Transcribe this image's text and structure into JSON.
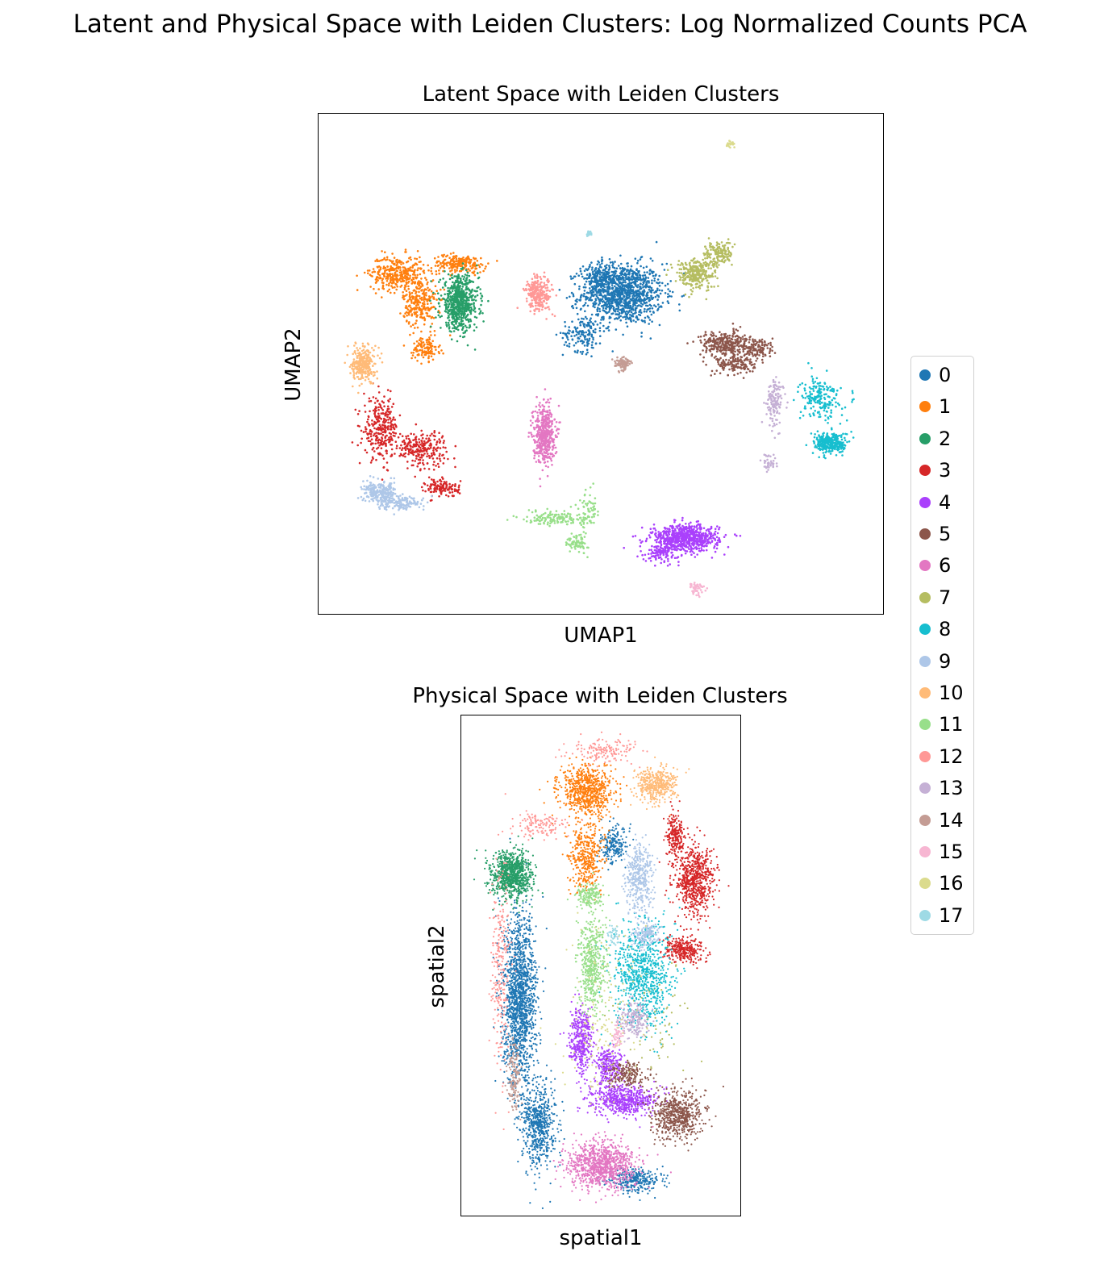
{
  "suptitle": "Latent and Physical Space with Leiden Clusters: Log Normalized Counts PCA",
  "panels": {
    "latent": {
      "title": "Latent Space with Leiden Clusters",
      "xlabel": "UMAP1",
      "ylabel": "UMAP2"
    },
    "physical": {
      "title": "Physical Space with Leiden Clusters",
      "xlabel": "spatial1",
      "ylabel": "spatial2"
    }
  },
  "legend": [
    {
      "label": "0",
      "color": "#1f77b4"
    },
    {
      "label": "1",
      "color": "#ff7f0e"
    },
    {
      "label": "2",
      "color": "#279e68"
    },
    {
      "label": "3",
      "color": "#d62728"
    },
    {
      "label": "4",
      "color": "#aa40fc"
    },
    {
      "label": "5",
      "color": "#8c564b"
    },
    {
      "label": "6",
      "color": "#e377c2"
    },
    {
      "label": "7",
      "color": "#b5bd61"
    },
    {
      "label": "8",
      "color": "#17becf"
    },
    {
      "label": "9",
      "color": "#aec7e8"
    },
    {
      "label": "10",
      "color": "#ffbb78"
    },
    {
      "label": "11",
      "color": "#98df8a"
    },
    {
      "label": "12",
      "color": "#ff9896"
    },
    {
      "label": "13",
      "color": "#c5b0d5"
    },
    {
      "label": "14",
      "color": "#c49c94"
    },
    {
      "label": "15",
      "color": "#f7b6d2"
    },
    {
      "label": "16",
      "color": "#dbdb8d"
    },
    {
      "label": "17",
      "color": "#9edae5"
    }
  ],
  "chart_data": [
    {
      "type": "scatter",
      "title": "Latent Space with Leiden Clusters",
      "xlabel": "UMAP1",
      "ylabel": "UMAP2",
      "grid": false,
      "ticks": false,
      "legend_position": "right",
      "xlim": [
        0,
        100
      ],
      "ylim": [
        0,
        100
      ],
      "series": [
        {
          "name": "0",
          "clusters": [
            {
              "x": 54,
              "y": 64,
              "sx": 6,
              "sy": 5,
              "n": 1100
            },
            {
              "x": 47,
              "y": 56,
              "sx": 3,
              "sy": 3,
              "n": 150
            },
            {
              "x": 50,
              "y": 67,
              "sx": 2.5,
              "sy": 2.5,
              "n": 180
            }
          ]
        },
        {
          "name": "1",
          "clusters": [
            {
              "x": 14,
              "y": 68,
              "sx": 4,
              "sy": 3,
              "n": 350
            },
            {
              "x": 18,
              "y": 62,
              "sx": 2.5,
              "sy": 4,
              "n": 250
            },
            {
              "x": 25,
              "y": 70,
              "sx": 4,
              "sy": 1.5,
              "n": 200
            },
            {
              "x": 19,
              "y": 53,
              "sx": 2,
              "sy": 2,
              "n": 120
            }
          ]
        },
        {
          "name": "2",
          "clusters": [
            {
              "x": 25,
              "y": 62,
              "sx": 2.8,
              "sy": 4.5,
              "n": 650
            }
          ]
        },
        {
          "name": "3",
          "clusters": [
            {
              "x": 11,
              "y": 37,
              "sx": 2.5,
              "sy": 5,
              "n": 280
            },
            {
              "x": 18,
              "y": 33,
              "sx": 4,
              "sy": 3,
              "n": 250
            },
            {
              "x": 22,
              "y": 25,
              "sx": 2.5,
              "sy": 1.5,
              "n": 120
            }
          ]
        },
        {
          "name": "4",
          "clusters": [
            {
              "x": 65,
              "y": 15,
              "sx": 5,
              "sy": 2.2,
              "n": 700
            },
            {
              "x": 61,
              "y": 12,
              "sx": 2.5,
              "sy": 1.5,
              "n": 100
            }
          ]
        },
        {
          "name": "5",
          "clusters": [
            {
              "x": 72,
              "y": 54,
              "sx": 3.5,
              "sy": 2,
              "n": 280
            },
            {
              "x": 74,
              "y": 50,
              "sx": 3,
              "sy": 2,
              "n": 160
            },
            {
              "x": 78,
              "y": 53,
              "sx": 2.5,
              "sy": 2,
              "n": 120
            }
          ]
        },
        {
          "name": "6",
          "clusters": [
            {
              "x": 40,
              "y": 36,
              "sx": 1.6,
              "sy": 5,
              "n": 420
            }
          ]
        },
        {
          "name": "7",
          "clusters": [
            {
              "x": 67,
              "y": 68,
              "sx": 3,
              "sy": 2.5,
              "n": 300
            },
            {
              "x": 71,
              "y": 72,
              "sx": 2,
              "sy": 2,
              "n": 150
            }
          ]
        },
        {
          "name": "8",
          "clusters": [
            {
              "x": 91,
              "y": 34,
              "sx": 2.5,
              "sy": 1.8,
              "n": 300
            },
            {
              "x": 89,
              "y": 43,
              "sx": 3,
              "sy": 3.5,
              "n": 200
            }
          ]
        },
        {
          "name": "9",
          "clusters": [
            {
              "x": 11,
              "y": 24,
              "sx": 2.5,
              "sy": 1.8,
              "n": 250
            },
            {
              "x": 15,
              "y": 22,
              "sx": 3,
              "sy": 1.2,
              "n": 120
            }
          ]
        },
        {
          "name": "10",
          "clusters": [
            {
              "x": 8,
              "y": 50,
              "sx": 1.7,
              "sy": 3,
              "n": 280
            }
          ]
        },
        {
          "name": "11",
          "clusters": [
            {
              "x": 42,
              "y": 19,
              "sx": 5,
              "sy": 1.2,
              "n": 150
            },
            {
              "x": 46,
              "y": 14,
              "sx": 1.5,
              "sy": 1.5,
              "n": 80
            },
            {
              "x": 48,
              "y": 21,
              "sx": 1.5,
              "sy": 3,
              "n": 60
            }
          ]
        },
        {
          "name": "12",
          "clusters": [
            {
              "x": 39,
              "y": 64,
              "sx": 2,
              "sy": 3,
              "n": 260
            }
          ]
        },
        {
          "name": "13",
          "clusters": [
            {
              "x": 81,
              "y": 42,
              "sx": 1.2,
              "sy": 4,
              "n": 130
            },
            {
              "x": 80,
              "y": 30,
              "sx": 1.2,
              "sy": 1.5,
              "n": 40
            }
          ]
        },
        {
          "name": "14",
          "clusters": [
            {
              "x": 54,
              "y": 50,
              "sx": 1.2,
              "sy": 1.2,
              "n": 90
            }
          ]
        },
        {
          "name": "15",
          "clusters": [
            {
              "x": 67,
              "y": 5,
              "sx": 1.2,
              "sy": 1,
              "n": 50
            }
          ]
        },
        {
          "name": "16",
          "clusters": [
            {
              "x": 73,
              "y": 94,
              "sx": 0.5,
              "sy": 0.7,
              "n": 20
            }
          ]
        },
        {
          "name": "17",
          "clusters": [
            {
              "x": 48,
              "y": 76,
              "sx": 0.4,
              "sy": 0.5,
              "n": 15
            }
          ]
        }
      ]
    },
    {
      "type": "scatter",
      "title": "Physical Space with Leiden Clusters",
      "xlabel": "spatial1",
      "ylabel": "spatial2",
      "grid": false,
      "ticks": false,
      "xlim": [
        0,
        100
      ],
      "ylim": [
        0,
        100
      ],
      "series": [
        {
          "name": "0",
          "clusters": [
            {
              "x": 21,
              "y": 43,
              "sx": 5,
              "sy": 14,
              "n": 1500
            },
            {
              "x": 28,
              "y": 18,
              "sx": 5,
              "sy": 7,
              "n": 600
            },
            {
              "x": 62,
              "y": 7,
              "sx": 8,
              "sy": 2,
              "n": 300
            },
            {
              "x": 55,
              "y": 74,
              "sx": 4,
              "sy": 3,
              "n": 200
            }
          ]
        },
        {
          "name": "1",
          "clusters": [
            {
              "x": 45,
              "y": 85,
              "sx": 8,
              "sy": 4,
              "n": 700
            },
            {
              "x": 45,
              "y": 72,
              "sx": 5,
              "sy": 6,
              "n": 400
            }
          ]
        },
        {
          "name": "2",
          "clusters": [
            {
              "x": 18,
              "y": 68,
              "sx": 6,
              "sy": 4,
              "n": 900
            }
          ]
        },
        {
          "name": "3",
          "clusters": [
            {
              "x": 84,
              "y": 67,
              "sx": 6,
              "sy": 6,
              "n": 700
            },
            {
              "x": 80,
              "y": 53,
              "sx": 6,
              "sy": 2,
              "n": 300
            },
            {
              "x": 77,
              "y": 76,
              "sx": 2.5,
              "sy": 4,
              "n": 200
            }
          ]
        },
        {
          "name": "4",
          "clusters": [
            {
              "x": 43,
              "y": 35,
              "sx": 3.5,
              "sy": 5,
              "n": 400
            },
            {
              "x": 58,
              "y": 23,
              "sx": 10,
              "sy": 2.5,
              "n": 600
            },
            {
              "x": 53,
              "y": 30,
              "sx": 4,
              "sy": 3,
              "n": 250
            }
          ]
        },
        {
          "name": "5",
          "clusters": [
            {
              "x": 78,
              "y": 20,
              "sx": 8,
              "sy": 4,
              "n": 600
            },
            {
              "x": 60,
              "y": 28,
              "sx": 6,
              "sy": 2,
              "n": 200
            }
          ]
        },
        {
          "name": "6",
          "clusters": [
            {
              "x": 50,
              "y": 10,
              "sx": 10,
              "sy": 4,
              "n": 1000
            }
          ]
        },
        {
          "name": "7",
          "clusters": [
            {
              "x": 70,
              "y": 40,
              "sx": 10,
              "sy": 10,
              "n": 70
            }
          ]
        },
        {
          "name": "8",
          "clusters": [
            {
              "x": 65,
              "y": 48,
              "sx": 9,
              "sy": 9,
              "n": 800
            }
          ]
        },
        {
          "name": "9",
          "clusters": [
            {
              "x": 64,
              "y": 67,
              "sx": 4,
              "sy": 6,
              "n": 400
            },
            {
              "x": 66,
              "y": 56,
              "sx": 4,
              "sy": 2,
              "n": 150
            }
          ]
        },
        {
          "name": "10",
          "clusters": [
            {
              "x": 70,
              "y": 86,
              "sx": 6,
              "sy": 3,
              "n": 400
            }
          ]
        },
        {
          "name": "11",
          "clusters": [
            {
              "x": 47,
              "y": 50,
              "sx": 4,
              "sy": 8,
              "n": 500
            },
            {
              "x": 46,
              "y": 64,
              "sx": 4,
              "sy": 2,
              "n": 150
            }
          ]
        },
        {
          "name": "12",
          "clusters": [
            {
              "x": 14,
              "y": 50,
              "sx": 3,
              "sy": 18,
              "n": 250
            },
            {
              "x": 52,
              "y": 93,
              "sx": 10,
              "sy": 2,
              "n": 150
            },
            {
              "x": 28,
              "y": 78,
              "sx": 7,
              "sy": 2,
              "n": 120
            }
          ]
        },
        {
          "name": "13",
          "clusters": [
            {
              "x": 62,
              "y": 39,
              "sx": 4,
              "sy": 3,
              "n": 200
            }
          ]
        },
        {
          "name": "14",
          "clusters": [
            {
              "x": 19,
              "y": 28,
              "sx": 2,
              "sy": 6,
              "n": 150
            }
          ]
        },
        {
          "name": "15",
          "clusters": [
            {
              "x": 56,
              "y": 36,
              "sx": 2,
              "sy": 2,
              "n": 60
            }
          ]
        },
        {
          "name": "16",
          "clusters": [
            {
              "x": 50,
              "y": 40,
              "sx": 12,
              "sy": 14,
              "n": 160
            }
          ]
        },
        {
          "name": "17",
          "clusters": [
            {
              "x": 55,
              "y": 56,
              "sx": 2,
              "sy": 2,
              "n": 40
            }
          ]
        }
      ]
    }
  ]
}
